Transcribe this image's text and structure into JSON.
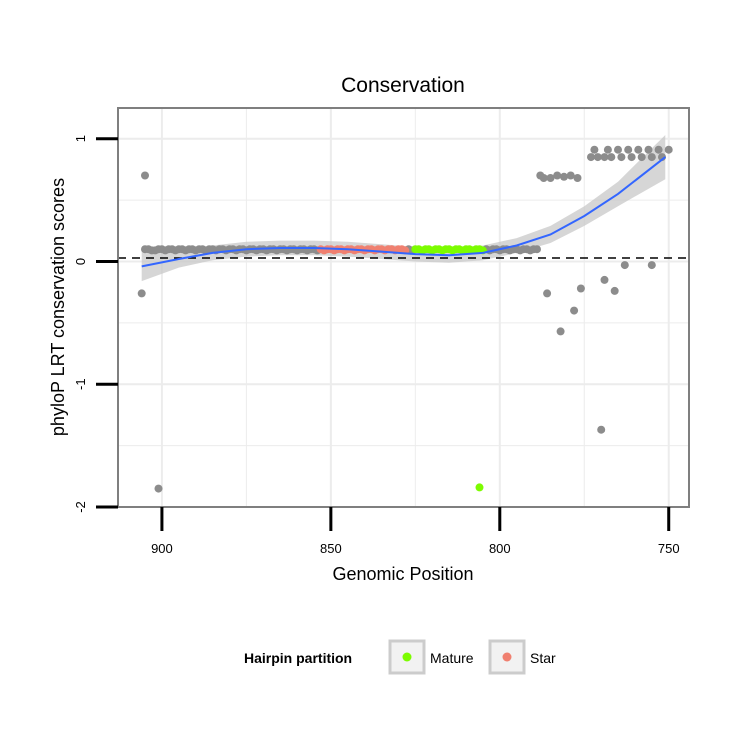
{
  "chart_data": {
    "type": "scatter",
    "title": "Conservation",
    "xlabel": "Genomic Position",
    "ylabel": "phyloP LRT conservation scores",
    "xlim": [
      913,
      744
    ],
    "x_reversed": true,
    "ylim": [
      -2,
      1.25
    ],
    "x_ticks": [
      900,
      850,
      800,
      750
    ],
    "y_ticks": [
      -2,
      -1,
      0,
      1
    ],
    "x_tick_labels": [
      "900",
      "850",
      "800",
      "750"
    ],
    "y_tick_labels": [
      "-2",
      "-1",
      "0",
      "1"
    ],
    "grid": true,
    "reference_line": {
      "y": 0,
      "style": "dashed"
    },
    "legend": {
      "title": "Hairpin partition",
      "position": "bottom",
      "items": [
        {
          "label": "Mature",
          "color": "#7CFC00"
        },
        {
          "label": "Star",
          "color": "#F08070"
        }
      ]
    },
    "colors": {
      "other": "#8c8c8c",
      "mature": "#7CFC00",
      "star": "#F08070",
      "smooth": "#3366FF",
      "ribbon": "#c8c8c8"
    },
    "series": [
      {
        "group": "other",
        "points": [
          [
            905,
            0.1
          ],
          [
            904,
            0.1
          ],
          [
            903,
            0.09
          ],
          [
            902,
            0.09
          ],
          [
            901,
            0.1
          ],
          [
            900,
            0.1
          ],
          [
            899,
            0.09
          ],
          [
            898,
            0.1
          ],
          [
            897,
            0.1
          ],
          [
            896,
            0.09
          ],
          [
            895,
            0.1
          ],
          [
            894,
            0.1
          ],
          [
            893,
            0.09
          ],
          [
            892,
            0.1
          ],
          [
            891,
            0.1
          ],
          [
            890,
            0.09
          ],
          [
            889,
            0.1
          ],
          [
            888,
            0.1
          ],
          [
            887,
            0.09
          ],
          [
            886,
            0.1
          ],
          [
            885,
            0.1
          ],
          [
            884,
            0.09
          ],
          [
            883,
            0.1
          ],
          [
            882,
            0.1
          ],
          [
            881,
            0.09
          ],
          [
            880,
            0.1
          ],
          [
            879,
            0.1
          ],
          [
            878,
            0.09
          ],
          [
            877,
            0.1
          ],
          [
            876,
            0.1
          ],
          [
            875,
            0.09
          ],
          [
            874,
            0.1
          ],
          [
            873,
            0.1
          ],
          [
            872,
            0.09
          ],
          [
            871,
            0.1
          ],
          [
            870,
            0.1
          ],
          [
            869,
            0.09
          ],
          [
            868,
            0.1
          ],
          [
            867,
            0.1
          ],
          [
            866,
            0.09
          ],
          [
            865,
            0.1
          ],
          [
            864,
            0.1
          ],
          [
            863,
            0.09
          ],
          [
            862,
            0.1
          ],
          [
            861,
            0.1
          ],
          [
            860,
            0.09
          ],
          [
            859,
            0.1
          ],
          [
            858,
            0.1
          ],
          [
            857,
            0.09
          ],
          [
            856,
            0.1
          ],
          [
            855,
            0.1
          ],
          [
            854,
            0.09
          ],
          [
            827,
            0.1
          ],
          [
            826,
            0.09
          ],
          [
            804,
            0.1
          ],
          [
            803,
            0.09
          ],
          [
            802,
            0.1
          ],
          [
            801,
            0.1
          ],
          [
            800,
            0.09
          ],
          [
            799,
            0.1
          ],
          [
            798,
            0.1
          ],
          [
            797,
            0.09
          ],
          [
            796,
            0.1
          ],
          [
            795,
            0.1
          ],
          [
            794,
            0.09
          ],
          [
            793,
            0.1
          ],
          [
            792,
            0.1
          ],
          [
            791,
            0.09
          ],
          [
            790,
            0.1
          ],
          [
            789,
            0.1
          ],
          [
            905,
            0.7
          ],
          [
            906,
            -0.26
          ],
          [
            901,
            -1.85
          ],
          [
            788,
            0.7
          ],
          [
            787,
            0.68
          ],
          [
            785,
            0.68
          ],
          [
            783,
            0.7
          ],
          [
            781,
            0.69
          ],
          [
            779,
            0.7
          ],
          [
            777,
            0.68
          ],
          [
            786,
            -0.26
          ],
          [
            782,
            -0.57
          ],
          [
            778,
            -0.4
          ],
          [
            776,
            -0.22
          ],
          [
            770,
            -1.37
          ],
          [
            769,
            -0.15
          ],
          [
            766,
            -0.24
          ],
          [
            763,
            -0.03
          ],
          [
            755,
            -0.03
          ],
          [
            773,
            0.85
          ],
          [
            772,
            0.91
          ],
          [
            771,
            0.85
          ],
          [
            769,
            0.85
          ],
          [
            768,
            0.91
          ],
          [
            767,
            0.85
          ],
          [
            765,
            0.91
          ],
          [
            764,
            0.85
          ],
          [
            762,
            0.91
          ],
          [
            761,
            0.85
          ],
          [
            759,
            0.91
          ],
          [
            758,
            0.85
          ],
          [
            756,
            0.91
          ],
          [
            755,
            0.85
          ],
          [
            753,
            0.91
          ],
          [
            752,
            0.85
          ],
          [
            750,
            0.91
          ]
        ]
      },
      {
        "group": "star",
        "points": [
          [
            853,
            0.1
          ],
          [
            852,
            0.09
          ],
          [
            851,
            0.1
          ],
          [
            850,
            0.1
          ],
          [
            849,
            0.09
          ],
          [
            848,
            0.1
          ],
          [
            847,
            0.1
          ],
          [
            846,
            0.09
          ],
          [
            845,
            0.1
          ],
          [
            844,
            0.1
          ],
          [
            843,
            0.09
          ],
          [
            842,
            0.1
          ],
          [
            841,
            0.1
          ],
          [
            840,
            0.09
          ],
          [
            839,
            0.1
          ],
          [
            838,
            0.1
          ],
          [
            837,
            0.09
          ],
          [
            836,
            0.1
          ],
          [
            835,
            0.1
          ],
          [
            834,
            0.09
          ],
          [
            833,
            0.1
          ],
          [
            832,
            0.1
          ],
          [
            831,
            0.09
          ],
          [
            830,
            0.1
          ],
          [
            829,
            0.1
          ],
          [
            828,
            0.09
          ]
        ]
      },
      {
        "group": "mature",
        "points": [
          [
            825,
            0.1
          ],
          [
            824,
            0.1
          ],
          [
            823,
            0.09
          ],
          [
            822,
            0.1
          ],
          [
            821,
            0.1
          ],
          [
            820,
            0.09
          ],
          [
            819,
            0.1
          ],
          [
            818,
            0.1
          ],
          [
            817,
            0.09
          ],
          [
            816,
            0.1
          ],
          [
            815,
            0.1
          ],
          [
            814,
            0.09
          ],
          [
            813,
            0.1
          ],
          [
            812,
            0.1
          ],
          [
            811,
            0.09
          ],
          [
            810,
            0.1
          ],
          [
            809,
            0.1
          ],
          [
            808,
            0.09
          ],
          [
            807,
            0.1
          ],
          [
            806,
            0.1
          ],
          [
            805,
            0.09
          ],
          [
            806,
            -1.84
          ]
        ]
      }
    ],
    "smooth": [
      [
        906,
        -0.04,
        0.12
      ],
      [
        895,
        0.02,
        0.07
      ],
      [
        885,
        0.07,
        0.06
      ],
      [
        875,
        0.1,
        0.06
      ],
      [
        865,
        0.11,
        0.06
      ],
      [
        855,
        0.11,
        0.06
      ],
      [
        845,
        0.1,
        0.06
      ],
      [
        835,
        0.08,
        0.06
      ],
      [
        825,
        0.06,
        0.06
      ],
      [
        815,
        0.05,
        0.06
      ],
      [
        805,
        0.07,
        0.06
      ],
      [
        795,
        0.13,
        0.06
      ],
      [
        785,
        0.22,
        0.07
      ],
      [
        775,
        0.37,
        0.08
      ],
      [
        765,
        0.55,
        0.1
      ],
      [
        751,
        0.85,
        0.18
      ]
    ]
  }
}
